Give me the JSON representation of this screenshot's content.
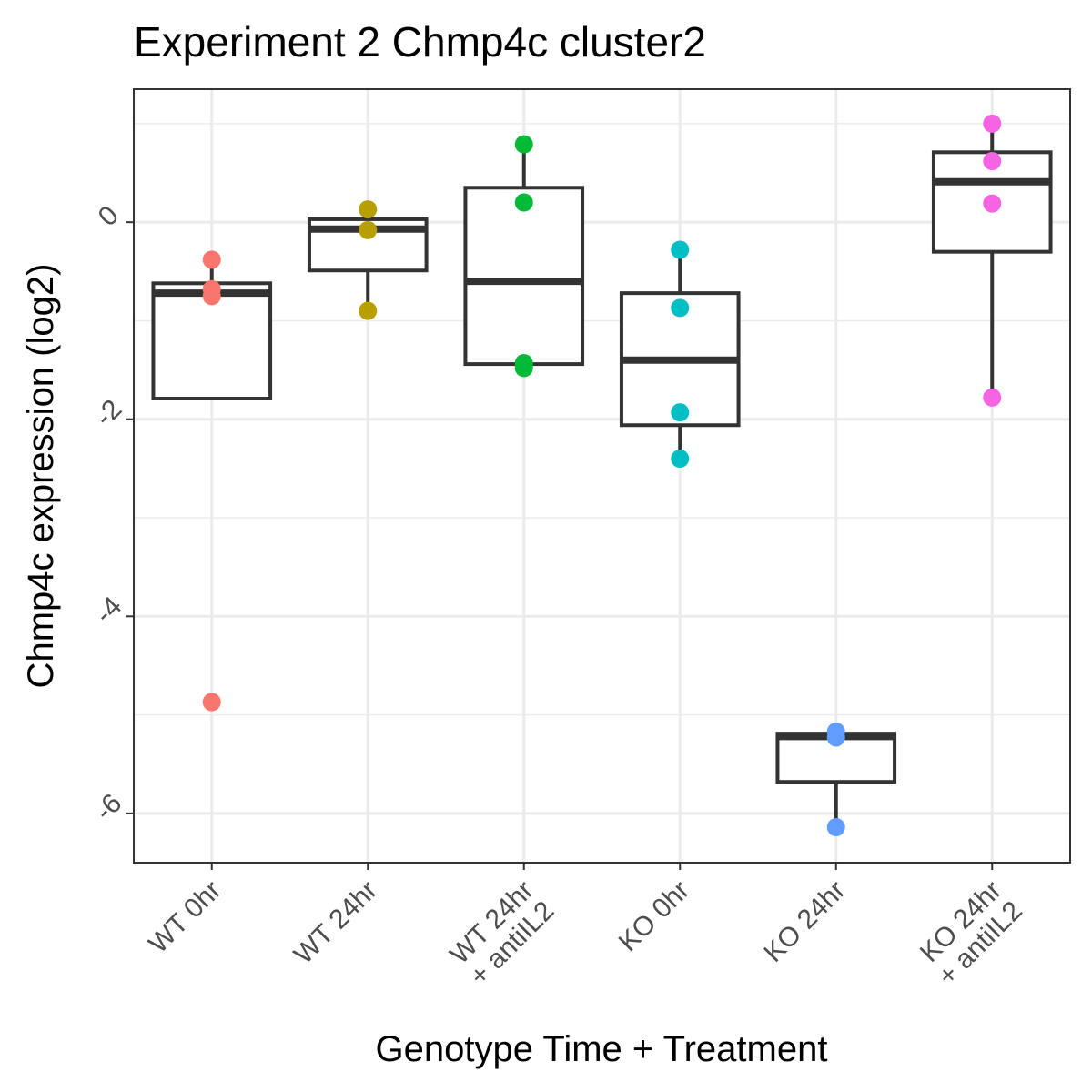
{
  "chart_data": {
    "type": "box",
    "title": "Experiment 2 Chmp4c cluster2",
    "xlabel": "Genotype Time + Treatment",
    "ylabel": "Chmp4c expression (log2)",
    "ylim": [
      -6.5,
      1.35
    ],
    "yticks": [
      -6,
      -4,
      -2,
      0
    ],
    "ytick_labels": [
      "-6",
      "-4",
      "-2",
      "0"
    ],
    "grid": true,
    "legend": "none",
    "categories": [
      [
        "WT 0hr"
      ],
      [
        "WT 24hr"
      ],
      [
        "WT 24hr",
        "+ antiIL2"
      ],
      [
        "KO 0hr"
      ],
      [
        "KO 24hr"
      ],
      [
        "KO 24hr",
        "+ antiIL2"
      ]
    ],
    "series": [
      {
        "color": "#F8766D",
        "box": {
          "q1": -1.79,
          "median": -0.72,
          "q3": -0.62,
          "whisker_low": -1.79,
          "whisker_high": -0.38
        },
        "points": [
          -0.38,
          -0.68,
          -0.75,
          -4.87
        ]
      },
      {
        "color": "#B79F00",
        "box": {
          "q1": -0.49,
          "median": -0.07,
          "q3": 0.03,
          "whisker_low": -0.9,
          "whisker_high": 0.03
        },
        "points": [
          0.13,
          -0.08,
          -0.9
        ]
      },
      {
        "color": "#00BA38",
        "box": {
          "q1": -1.44,
          "median": -0.6,
          "q3": 0.35,
          "whisker_low": -1.44,
          "whisker_high": 0.79
        },
        "points": [
          0.79,
          0.2,
          -1.43,
          -1.48
        ]
      },
      {
        "color": "#00BFC4",
        "box": {
          "q1": -2.06,
          "median": -1.4,
          "q3": -0.72,
          "whisker_low": -2.4,
          "whisker_high": -0.28
        },
        "points": [
          -0.28,
          -0.87,
          -1.93,
          -2.4
        ]
      },
      {
        "color": "#619CFF",
        "box": {
          "q1": -5.68,
          "median": -5.22,
          "q3": -5.19,
          "whisker_low": -6.14,
          "whisker_high": -5.19
        },
        "points": [
          -5.17,
          -5.23,
          -6.14
        ]
      },
      {
        "color": "#F564E3",
        "box": {
          "q1": -0.3,
          "median": 0.41,
          "q3": 0.71,
          "whisker_low": -1.78,
          "whisker_high": 1.0
        },
        "points": [
          1.0,
          0.62,
          0.19,
          -1.78
        ]
      }
    ]
  }
}
